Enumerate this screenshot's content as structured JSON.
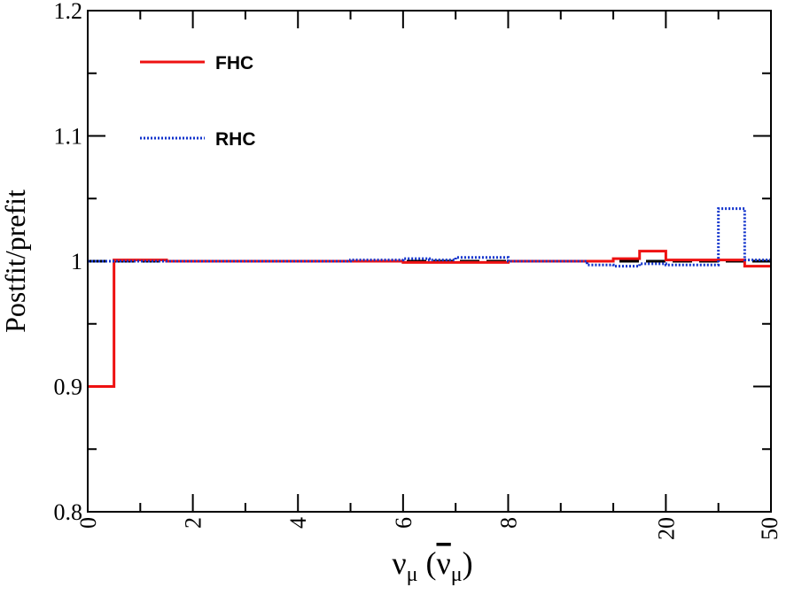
{
  "chart_data": {
    "type": "line",
    "title": "",
    "ylabel": "Postfit/prefit",
    "xlabel": {
      "main": "ν",
      "main_sub": "μ",
      "paren_open": " (",
      "bar": "ν",
      "bar_sub": "μ",
      "paren_close": ")"
    },
    "ylim": [
      0.8,
      1.2
    ],
    "y_ticks": [
      "0.8",
      "0.9",
      "1",
      "1.1",
      "1.2"
    ],
    "y_tick_values": [
      0.8,
      0.9,
      1.0,
      1.1,
      1.2
    ],
    "x_ticks": [
      "0",
      "2",
      "4",
      "6",
      "8",
      "20",
      "50"
    ],
    "x_tick_positions": [
      0,
      2,
      4,
      6,
      8,
      11,
      13
    ],
    "xlim": [
      0,
      13
    ],
    "x_scale_note": "variable bin width axis",
    "reference_line": 1.0,
    "legend_position": "top-left",
    "series": [
      {
        "name": "FHC",
        "color": "#ee1111",
        "style": "solid",
        "bin_edges": [
          0,
          0.5,
          1.5,
          2.0,
          2.5,
          3.0,
          3.5,
          4.0,
          4.5,
          5.0,
          5.5,
          6.0,
          6.5,
          7.0,
          7.5,
          8.0,
          8.5,
          9.0,
          9.5,
          10.0,
          10.5,
          11.0,
          11.5,
          12.0,
          12.5,
          13.0
        ],
        "values": [
          0.9,
          1.001,
          1.0,
          1.0,
          1.0,
          1.0,
          1.0,
          1.0,
          1.0,
          1.0,
          1.0,
          0.999,
          0.999,
          0.999,
          0.999,
          1.0,
          1.0,
          1.0,
          1.0,
          1.002,
          1.008,
          1.001,
          1.001,
          1.001,
          0.996
        ]
      },
      {
        "name": "RHC",
        "color": "#1133cc",
        "style": "dotted",
        "bin_edges": [
          0,
          0.5,
          1.5,
          2.0,
          2.5,
          3.0,
          3.5,
          4.0,
          4.5,
          5.0,
          5.5,
          6.0,
          6.5,
          7.0,
          7.5,
          8.0,
          8.5,
          9.0,
          9.5,
          10.0,
          10.5,
          11.0,
          11.5,
          12.0,
          12.5,
          13.0
        ],
        "values": [
          1.0,
          1.0,
          1.0,
          1.0,
          1.0,
          1.0,
          1.0,
          1.0,
          1.0,
          1.001,
          1.001,
          1.002,
          1.001,
          1.003,
          1.003,
          1.0,
          1.0,
          1.0,
          0.997,
          0.996,
          0.998,
          0.997,
          0.997,
          1.042,
          1.001
        ]
      }
    ]
  },
  "colors": {
    "frame": "#000000",
    "background": "#ffffff",
    "reference": "#000000"
  }
}
